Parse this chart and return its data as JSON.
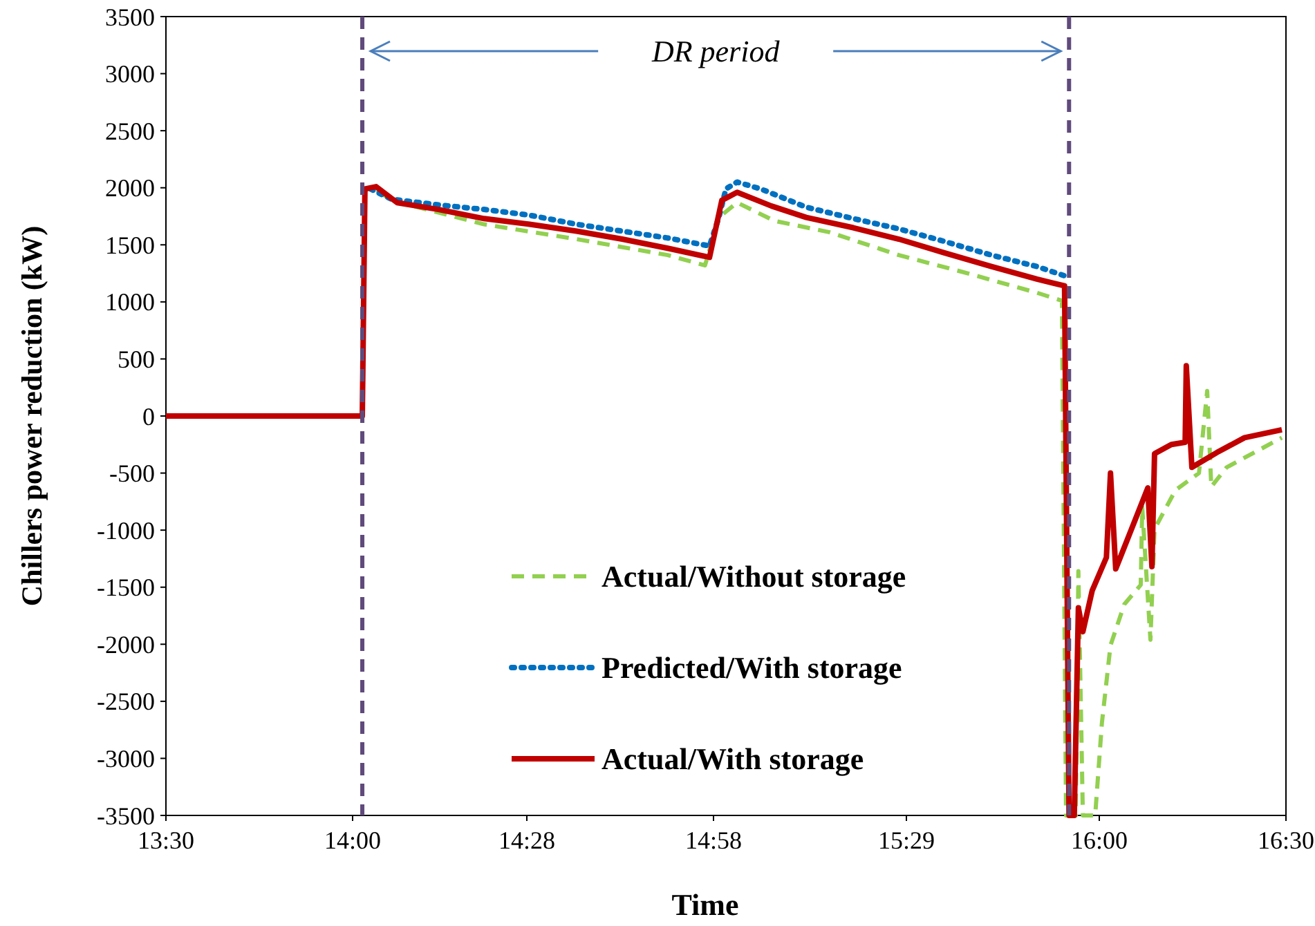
{
  "chart_data": {
    "type": "line",
    "xlabel": "Time",
    "ylabel": "Chillers power reduction (kW)",
    "xlim": [
      13.5,
      16.5
    ],
    "xticks": [
      {
        "value": 13.5,
        "label": "13:30"
      },
      {
        "value": 14.0,
        "label": "14:00"
      },
      {
        "value": 14.4667,
        "label": "14:28"
      },
      {
        "value": 14.9667,
        "label": "14:58"
      },
      {
        "value": 15.4833,
        "label": "15:29"
      },
      {
        "value": 16.0,
        "label": "16:00"
      },
      {
        "value": 16.5,
        "label": "16:30"
      }
    ],
    "ylim": [
      -3500,
      3500
    ],
    "yticks": [
      -3500,
      -3000,
      -2500,
      -2000,
      -1500,
      -1000,
      -500,
      0,
      500,
      1000,
      1500,
      2000,
      2500,
      3000,
      3500
    ],
    "grid": false,
    "legend": "bottom",
    "marker": "none",
    "ref_lines": [
      {
        "axis": "x",
        "value": 14.026,
        "color": "#604a7b",
        "line_style": "dashed"
      },
      {
        "axis": "x",
        "value": 15.919,
        "color": "#604a7b",
        "line_style": "dashed"
      }
    ],
    "annotations": [
      "DR period"
    ],
    "series": [
      {
        "name": "Actual/Without storage",
        "color": "#92d050",
        "line_style": "dashed",
        "x": [
          13.5,
          14.026,
          14.033,
          14.056,
          14.104,
          14.352,
          14.6,
          14.844,
          14.944,
          14.981,
          15.03,
          15.13,
          15.278,
          15.463,
          15.648,
          15.833,
          15.9,
          15.911,
          15.937,
          15.944,
          15.956,
          15.989,
          16.007,
          16.03,
          16.067,
          16.111,
          16.115,
          16.137,
          16.148,
          16.204,
          16.267,
          16.289,
          16.3,
          16.341,
          16.415,
          16.489
        ],
        "values": [
          0,
          0,
          1980,
          2000,
          1890,
          1680,
          1550,
          1410,
          1320,
          1740,
          1870,
          1710,
          1610,
          1410,
          1250,
          1080,
          1010,
          -3500,
          -3500,
          -1360,
          -3500,
          -3500,
          -2690,
          -2010,
          -1650,
          -1480,
          -800,
          -1960,
          -990,
          -650,
          -500,
          220,
          -620,
          -450,
          -320,
          -190
        ]
      },
      {
        "name": "Predicted/With storage",
        "color": "#0070c0",
        "line_style": "dotted",
        "x": [
          14.048,
          14.104,
          14.23,
          14.352,
          14.474,
          14.6,
          14.722,
          14.844,
          14.956,
          14.981,
          15.0,
          15.03,
          15.093,
          15.215,
          15.341,
          15.463,
          15.585,
          15.711,
          15.833,
          15.915
        ],
        "values": [
          1990,
          1900,
          1850,
          1810,
          1760,
          1680,
          1620,
          1560,
          1490,
          1740,
          1990,
          2050,
          1990,
          1830,
          1730,
          1640,
          1530,
          1410,
          1310,
          1220
        ]
      },
      {
        "name": "Actual/With storage",
        "color": "#c00000",
        "line_style": "solid",
        "x": [
          13.5,
          14.026,
          14.033,
          14.063,
          14.119,
          14.23,
          14.352,
          14.474,
          14.6,
          14.722,
          14.844,
          14.956,
          14.989,
          15.03,
          15.122,
          15.215,
          15.341,
          15.463,
          15.585,
          15.711,
          15.833,
          15.907,
          15.919,
          15.933,
          15.944,
          15.956,
          15.981,
          16.019,
          16.03,
          16.044,
          16.13,
          16.141,
          16.148,
          16.193,
          16.23,
          16.233,
          16.248,
          16.315,
          16.389,
          16.489
        ],
        "values": [
          0,
          0,
          1990,
          2010,
          1870,
          1810,
          1730,
          1680,
          1620,
          1550,
          1470,
          1390,
          1890,
          1960,
          1840,
          1740,
          1650,
          1550,
          1430,
          1310,
          1200,
          1140,
          -3500,
          -3500,
          -1680,
          -1890,
          -1530,
          -1240,
          -500,
          -1340,
          -630,
          -1320,
          -330,
          -250,
          -230,
          440,
          -450,
          -320,
          -190,
          -120
        ]
      }
    ]
  }
}
